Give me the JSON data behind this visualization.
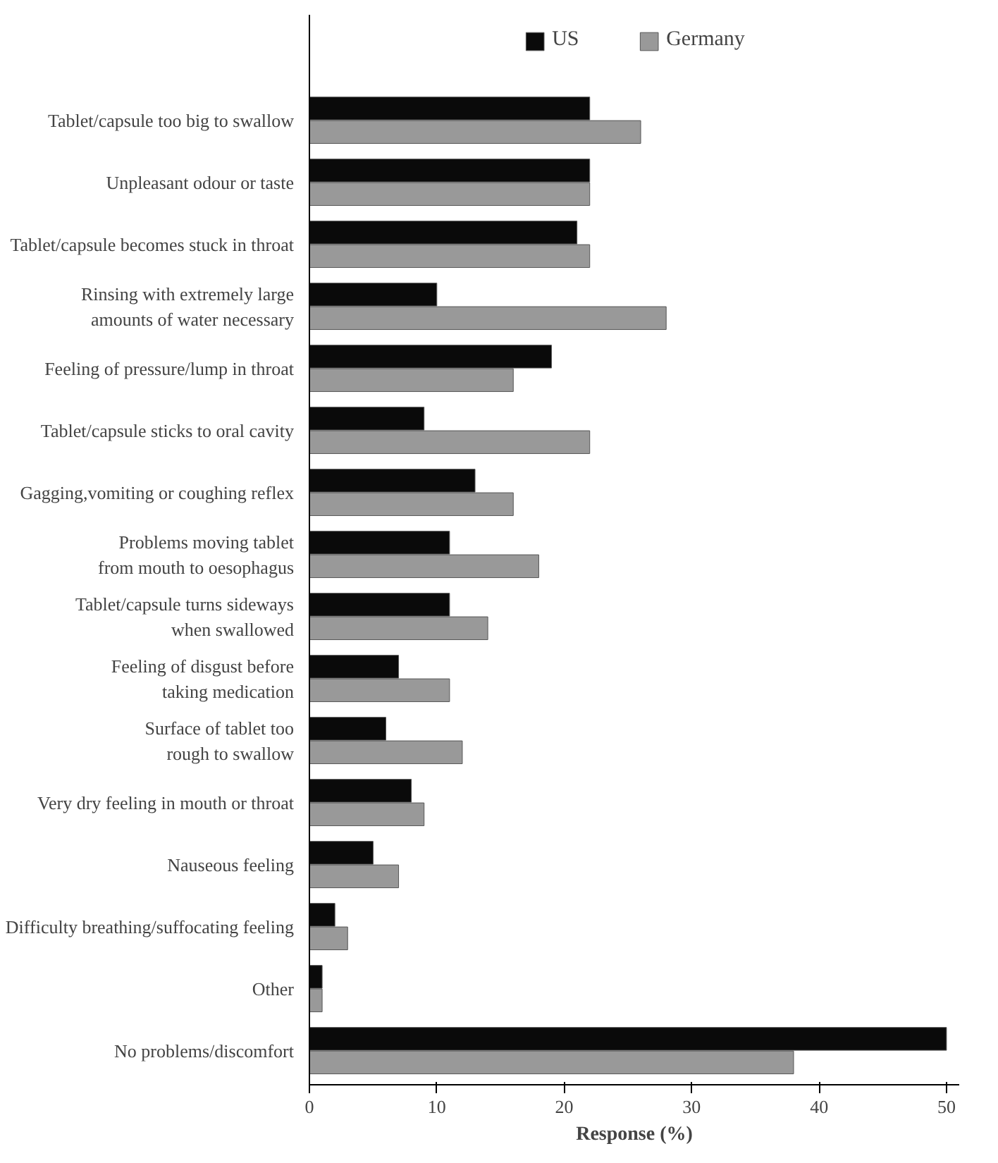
{
  "chart_data": {
    "type": "bar",
    "orientation": "horizontal",
    "xlabel": "Response (%)",
    "categories": [
      "Tablet/capsule too big to swallow",
      "Unpleasant odour or taste",
      "Tablet/capsule becomes stuck in throat",
      "Rinsing with extremely large\namounts of water necessary",
      "Feeling of pressure/lump in throat",
      "Tablet/capsule sticks to oral cavity",
      "Gagging,vomiting or coughing reflex",
      "Problems moving tablet\nfrom mouth to oesophagus",
      "Tablet/capsule turns sideways\nwhen swallowed",
      "Feeling of disgust before\ntaking medication",
      "Surface of tablet too\nrough to swallow",
      "Very dry feeling in mouth or throat",
      "Nauseous feeling",
      "Difficulty breathing/suffocating feeling",
      "Other",
      "No problems/discomfort"
    ],
    "series": [
      {
        "name": "US",
        "color": "#0a0a0a",
        "values": [
          22,
          22,
          21,
          10,
          19,
          9,
          13,
          11,
          11,
          7,
          6,
          8,
          5,
          2,
          1,
          50
        ]
      },
      {
        "name": "Germany",
        "color": "#999999",
        "values": [
          26,
          22,
          22,
          28,
          16,
          22,
          16,
          18,
          14,
          11,
          12,
          9,
          7,
          3,
          1,
          38
        ]
      }
    ],
    "xlim": [
      0,
      51
    ],
    "xticks": [
      0,
      10,
      20,
      30,
      40,
      50
    ],
    "grid": false,
    "legend": "top"
  }
}
